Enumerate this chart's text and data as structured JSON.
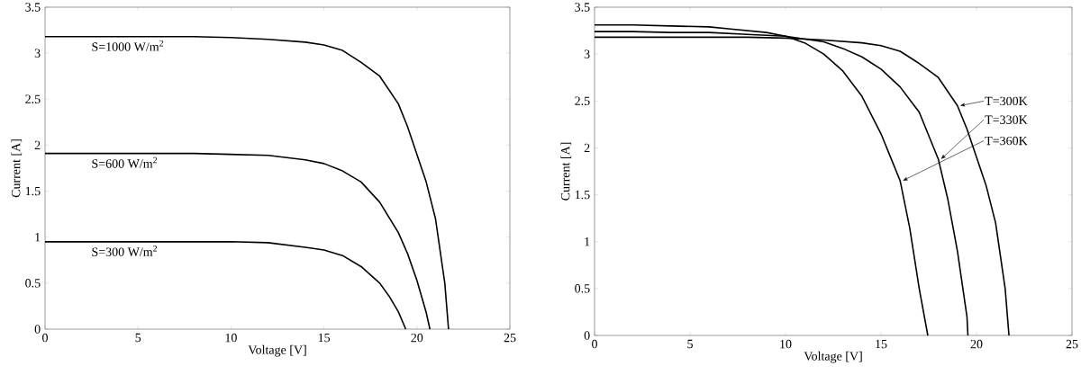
{
  "chart_data": [
    {
      "type": "line",
      "xlabel": "Voltage [V]",
      "ylabel": "Current [A]",
      "xlim": [
        0,
        25
      ],
      "ylim": [
        0,
        3.5
      ],
      "xticks": [
        0,
        5,
        10,
        15,
        20,
        25
      ],
      "yticks": [
        0,
        0.5,
        1,
        1.5,
        2,
        2.5,
        3,
        3.5
      ],
      "grid": false,
      "marker": "none",
      "line_style": "solid",
      "series": [
        {
          "name": "S=1000 W/m$^{2}$",
          "color": "#000000",
          "x": [
            0,
            2,
            4,
            6,
            8,
            10,
            12,
            14,
            15,
            16,
            17,
            18,
            19,
            19.5,
            20,
            20.5,
            21,
            21.5,
            21.7
          ],
          "values": [
            3.18,
            3.18,
            3.18,
            3.18,
            3.18,
            3.17,
            3.15,
            3.12,
            3.09,
            3.03,
            2.9,
            2.75,
            2.45,
            2.2,
            1.9,
            1.6,
            1.2,
            0.5,
            0
          ]
        },
        {
          "name": "S=600 W/m$^{2}$",
          "color": "#000000",
          "x": [
            0,
            2,
            4,
            6,
            8,
            10,
            12,
            14,
            15,
            16,
            17,
            18,
            19,
            19.5,
            20,
            20.5,
            20.7
          ],
          "values": [
            1.91,
            1.91,
            1.91,
            1.91,
            1.91,
            1.9,
            1.89,
            1.84,
            1.8,
            1.72,
            1.6,
            1.38,
            1.05,
            0.82,
            0.53,
            0.18,
            0
          ]
        },
        {
          "name": "S=300 W/m$^{2}$",
          "color": "#000000",
          "x": [
            0,
            2,
            4,
            6,
            8,
            10,
            12,
            14,
            15,
            16,
            17,
            18,
            18.5,
            19,
            19.4
          ],
          "values": [
            0.95,
            0.95,
            0.95,
            0.95,
            0.95,
            0.95,
            0.94,
            0.89,
            0.86,
            0.8,
            0.68,
            0.5,
            0.36,
            0.19,
            0
          ]
        }
      ]
    },
    {
      "type": "line",
      "xlabel": "Voltage [V]",
      "ylabel": "Current [A]",
      "xlim": [
        0,
        25
      ],
      "ylim": [
        0,
        3.5
      ],
      "xticks": [
        0,
        5,
        10,
        15,
        20,
        25
      ],
      "yticks": [
        0,
        0.5,
        1,
        1.5,
        2,
        2.5,
        3,
        3.5
      ],
      "grid": false,
      "marker": "none",
      "line_style": "solid",
      "series": [
        {
          "name": "T=300K",
          "color": "#000000",
          "x": [
            0,
            2,
            4,
            6,
            8,
            10,
            12,
            14,
            15,
            16,
            17,
            18,
            19,
            19.5,
            20,
            20.5,
            21,
            21.5,
            21.7
          ],
          "values": [
            3.18,
            3.18,
            3.18,
            3.18,
            3.18,
            3.17,
            3.15,
            3.12,
            3.09,
            3.03,
            2.9,
            2.75,
            2.45,
            2.2,
            1.9,
            1.6,
            1.2,
            0.5,
            0
          ]
        },
        {
          "name": "T=330K",
          "color": "#000000",
          "x": [
            0,
            2,
            4,
            6,
            8,
            10,
            12,
            13,
            14,
            15,
            16,
            17,
            18,
            18.5,
            19,
            19.5,
            19.55
          ],
          "values": [
            3.24,
            3.24,
            3.23,
            3.23,
            3.21,
            3.19,
            3.13,
            3.06,
            2.97,
            2.84,
            2.65,
            2.38,
            1.88,
            1.45,
            0.9,
            0.2,
            0
          ]
        },
        {
          "name": "T=360K",
          "color": "#000000",
          "x": [
            0,
            2,
            4,
            6,
            7,
            8,
            9,
            10,
            11,
            12,
            13,
            14,
            15,
            15.5,
            16,
            16.5,
            17,
            17.45
          ],
          "values": [
            3.31,
            3.31,
            3.3,
            3.29,
            3.27,
            3.25,
            3.23,
            3.19,
            3.12,
            3.0,
            2.82,
            2.55,
            2.15,
            1.9,
            1.65,
            1.15,
            0.5,
            0
          ]
        }
      ]
    }
  ]
}
